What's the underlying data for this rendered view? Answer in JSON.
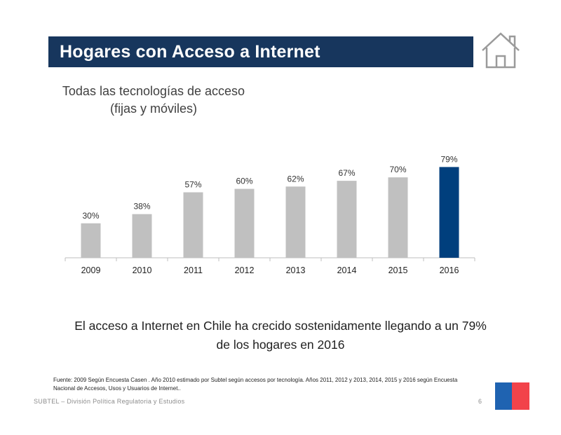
{
  "title": "Hogares con Acceso a Internet",
  "subtitle": {
    "line1": "Todas las tecnologías de acceso",
    "line2": "(fijas y móviles)"
  },
  "conclusion": {
    "line1": "El acceso a Internet en Chile ha crecido sostenidamente llegando a un 79%",
    "line2": "de los hogares en 2016"
  },
  "source": "Fuente: 2009 Según  Encuesta Casen . Año 2010 estimado por Subtel según accesos por tecnología. Años 2011, 2012 y 2013, 2014, 2015 y 2016 según Encuesta Nacional de Accesos, Usos y Usuarios de Internet..",
  "footer": {
    "org": "SUBTEL – División Política Regulatoria y Estudios",
    "page": "6"
  },
  "colors": {
    "title_bg": "#17365d",
    "bar": "#c0c0c0",
    "highlight": "#003f7d",
    "flag_blue": "#1f63b1",
    "flag_red": "#f2434a"
  },
  "icons": {
    "home": "home-icon"
  },
  "chart_data": {
    "type": "bar",
    "categories": [
      "2009",
      "2010",
      "2011",
      "2012",
      "2013",
      "2014",
      "2015",
      "2016"
    ],
    "values": [
      30,
      38,
      57,
      60,
      62,
      67,
      70,
      79
    ],
    "labels": [
      "30%",
      "38%",
      "57%",
      "60%",
      "62%",
      "67%",
      "70%",
      "79%"
    ],
    "highlight_index": 7,
    "ylim": [
      0,
      100
    ],
    "title": "",
    "xlabel": "",
    "ylabel": "",
    "grid": false
  }
}
